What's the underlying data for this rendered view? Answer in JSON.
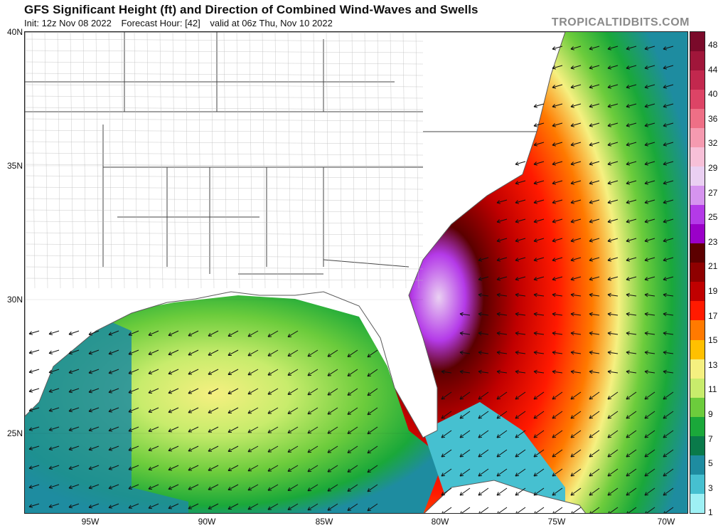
{
  "header": {
    "title": "GFS Significant Height (ft) and Direction of Combined Wind-Waves and Swells",
    "init": "Init: 12z Nov 08 2022",
    "forecast_hour": "Forecast Hour: [42]",
    "valid": "valid at 06z Thu, Nov 10 2022",
    "brand": "TROPICALTIDBITS.COM"
  },
  "axes": {
    "lat_labels": [
      "40N",
      "35N",
      "30N",
      "25N"
    ],
    "lon_labels": [
      "95W",
      "90W",
      "85W",
      "80W",
      "75W",
      "70W"
    ]
  },
  "colorbar": {
    "labels": [
      "48",
      "44",
      "40",
      "36",
      "32",
      "29",
      "27",
      "25",
      "23",
      "21",
      "19",
      "17",
      "15",
      "13",
      "11",
      "9",
      "7",
      "5",
      "3",
      "1"
    ],
    "colors": [
      "#7a0a2a",
      "#a0163a",
      "#c2284e",
      "#dd4466",
      "#ee6f86",
      "#f59ab0",
      "#f7c0d8",
      "#ead0f2",
      "#d694ef",
      "#b43ae8",
      "#9a00c8",
      "#5c0000",
      "#8e0000",
      "#c00000",
      "#ff1a00",
      "#ff7a00",
      "#ffc000",
      "#f5f080",
      "#c8ec6c",
      "#6ccc3c",
      "#1aa83a",
      "#0a7a4a",
      "#1e8ca0",
      "#46c0d0",
      "#9ef0f4"
    ]
  },
  "legend": {
    "coastline": "#5a5a5a",
    "land": "#ffffff"
  }
}
